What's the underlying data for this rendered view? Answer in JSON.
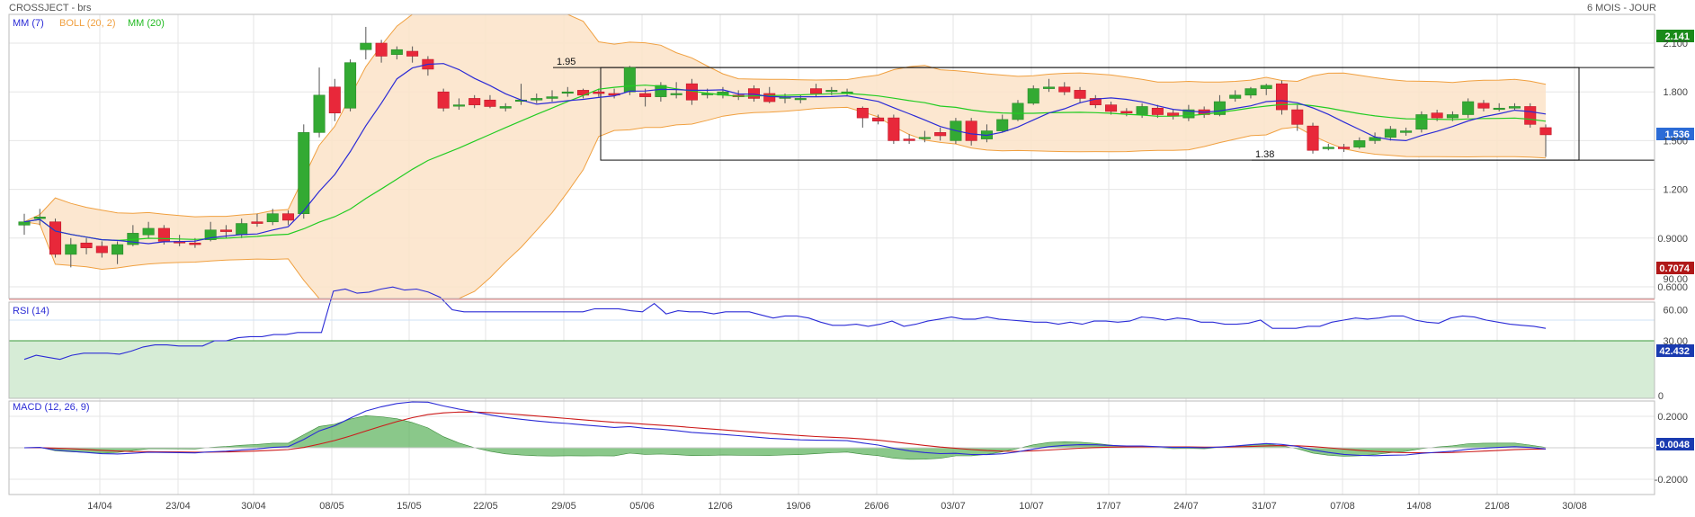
{
  "header": {
    "title": "CROSSJECT - brs",
    "period": "6 MOIS - JOUR"
  },
  "chart_data": [
    {
      "type": "candlestick",
      "legend": {
        "mm7": "MM (7)",
        "boll": "BOLL (20, 2)",
        "mm20": "MM (20)"
      },
      "ylim": [
        0.5,
        2.2
      ],
      "y_ticks": [
        "2.100",
        "1.800",
        "1.500",
        "1.200",
        "0.9000",
        "0.6000"
      ],
      "x_ticks": [
        "14/04",
        "23/04",
        "30/04",
        "08/05",
        "15/05",
        "22/05",
        "29/05",
        "05/06",
        "12/06",
        "19/06",
        "26/06",
        "03/07",
        "10/07",
        "17/07",
        "24/07",
        "31/07",
        "07/08",
        "14/08",
        "21/08",
        "30/08"
      ],
      "last_high_label": "2.141",
      "last_price_label": "1.536",
      "last_low_label": "0.7074",
      "annotations": {
        "resistance": {
          "label": "1.95",
          "value": 1.95
        },
        "support": {
          "label": "1.38",
          "value": 1.38
        }
      },
      "candles": [
        [
          0.98,
          1.0,
          1.05,
          0.92
        ],
        [
          1.02,
          1.03,
          1.08,
          0.98
        ],
        [
          1.0,
          0.8,
          1.02,
          0.78
        ],
        [
          0.8,
          0.86,
          0.9,
          0.72
        ],
        [
          0.87,
          0.84,
          0.9,
          0.8
        ],
        [
          0.85,
          0.81,
          0.88,
          0.78
        ],
        [
          0.8,
          0.86,
          0.88,
          0.74
        ],
        [
          0.86,
          0.93,
          0.98,
          0.85
        ],
        [
          0.92,
          0.96,
          1.0,
          0.9
        ],
        [
          0.96,
          0.88,
          0.98,
          0.86
        ],
        [
          0.88,
          0.87,
          0.92,
          0.85
        ],
        [
          0.87,
          0.86,
          0.9,
          0.84
        ],
        [
          0.89,
          0.95,
          1.0,
          0.88
        ],
        [
          0.95,
          0.94,
          0.98,
          0.9
        ],
        [
          0.92,
          0.99,
          1.02,
          0.9
        ],
        [
          1.0,
          0.99,
          1.05,
          0.97
        ],
        [
          1.0,
          1.05,
          1.08,
          0.98
        ],
        [
          1.05,
          1.01,
          1.07,
          0.98
        ],
        [
          1.05,
          1.55,
          1.6,
          1.02
        ],
        [
          1.55,
          1.78,
          1.95,
          1.52
        ],
        [
          1.83,
          1.67,
          1.88,
          1.62
        ],
        [
          1.7,
          1.98,
          2.0,
          1.68
        ],
        [
          2.06,
          2.1,
          2.2,
          2.0
        ],
        [
          2.1,
          2.02,
          2.12,
          1.98
        ],
        [
          2.03,
          2.06,
          2.08,
          2.0
        ],
        [
          2.05,
          2.02,
          2.08,
          1.98
        ],
        [
          2.0,
          1.94,
          2.02,
          1.9
        ],
        [
          1.8,
          1.7,
          1.82,
          1.68
        ],
        [
          1.72,
          1.72,
          1.76,
          1.69
        ],
        [
          1.76,
          1.72,
          1.78,
          1.7
        ],
        [
          1.75,
          1.71,
          1.78,
          1.7
        ],
        [
          1.7,
          1.71,
          1.73,
          1.68
        ],
        [
          1.75,
          1.75,
          1.85,
          1.72
        ],
        [
          1.75,
          1.76,
          1.79,
          1.73
        ],
        [
          1.76,
          1.77,
          1.81,
          1.74
        ],
        [
          1.8,
          1.8,
          1.83,
          1.77
        ],
        [
          1.81,
          1.78,
          1.82,
          1.76
        ],
        [
          1.8,
          1.79,
          1.82,
          1.77
        ],
        [
          1.79,
          1.78,
          1.82,
          1.76
        ],
        [
          1.8,
          1.95,
          1.96,
          1.78
        ],
        [
          1.79,
          1.77,
          1.82,
          1.71
        ],
        [
          1.77,
          1.84,
          1.86,
          1.74
        ],
        [
          1.79,
          1.79,
          1.86,
          1.76
        ],
        [
          1.85,
          1.75,
          1.88,
          1.72
        ],
        [
          1.79,
          1.79,
          1.82,
          1.76
        ],
        [
          1.78,
          1.8,
          1.83,
          1.76
        ],
        [
          1.78,
          1.77,
          1.81,
          1.75
        ],
        [
          1.82,
          1.76,
          1.84,
          1.74
        ],
        [
          1.79,
          1.74,
          1.83,
          1.73
        ],
        [
          1.76,
          1.77,
          1.79,
          1.73
        ],
        [
          1.76,
          1.76,
          1.78,
          1.73
        ],
        [
          1.82,
          1.79,
          1.85,
          1.77
        ],
        [
          1.81,
          1.81,
          1.83,
          1.78
        ],
        [
          1.8,
          1.8,
          1.82,
          1.78
        ],
        [
          1.7,
          1.64,
          1.71,
          1.58
        ],
        [
          1.64,
          1.62,
          1.66,
          1.6
        ],
        [
          1.64,
          1.5,
          1.66,
          1.48
        ],
        [
          1.51,
          1.5,
          1.54,
          1.48
        ],
        [
          1.52,
          1.52,
          1.56,
          1.49
        ],
        [
          1.55,
          1.53,
          1.58,
          1.5
        ],
        [
          1.5,
          1.62,
          1.64,
          1.48
        ],
        [
          1.62,
          1.5,
          1.64,
          1.47
        ],
        [
          1.51,
          1.56,
          1.6,
          1.49
        ],
        [
          1.56,
          1.63,
          1.66,
          1.55
        ],
        [
          1.63,
          1.73,
          1.75,
          1.62
        ],
        [
          1.73,
          1.82,
          1.84,
          1.72
        ],
        [
          1.82,
          1.83,
          1.88,
          1.8
        ],
        [
          1.83,
          1.8,
          1.86,
          1.78
        ],
        [
          1.81,
          1.76,
          1.83,
          1.73
        ],
        [
          1.76,
          1.72,
          1.78,
          1.7
        ],
        [
          1.72,
          1.68,
          1.74,
          1.66
        ],
        [
          1.68,
          1.67,
          1.7,
          1.65
        ],
        [
          1.66,
          1.71,
          1.73,
          1.64
        ],
        [
          1.7,
          1.66,
          1.72,
          1.64
        ],
        [
          1.67,
          1.65,
          1.69,
          1.63
        ],
        [
          1.64,
          1.69,
          1.72,
          1.62
        ],
        [
          1.69,
          1.66,
          1.71,
          1.64
        ],
        [
          1.66,
          1.74,
          1.78,
          1.65
        ],
        [
          1.76,
          1.78,
          1.81,
          1.74
        ],
        [
          1.78,
          1.82,
          1.83,
          1.76
        ],
        [
          1.82,
          1.84,
          1.85,
          1.78
        ],
        [
          1.85,
          1.69,
          1.87,
          1.66
        ],
        [
          1.69,
          1.6,
          1.72,
          1.56
        ],
        [
          1.59,
          1.44,
          1.61,
          1.42
        ],
        [
          1.45,
          1.46,
          1.48,
          1.44
        ],
        [
          1.46,
          1.45,
          1.48,
          1.43
        ],
        [
          1.46,
          1.5,
          1.52,
          1.45
        ],
        [
          1.5,
          1.52,
          1.55,
          1.48
        ],
        [
          1.52,
          1.57,
          1.59,
          1.5
        ],
        [
          1.55,
          1.56,
          1.58,
          1.53
        ],
        [
          1.57,
          1.66,
          1.68,
          1.55
        ],
        [
          1.67,
          1.64,
          1.69,
          1.62
        ],
        [
          1.64,
          1.66,
          1.68,
          1.62
        ],
        [
          1.66,
          1.74,
          1.76,
          1.64
        ],
        [
          1.73,
          1.7,
          1.75,
          1.68
        ],
        [
          1.7,
          1.7,
          1.73,
          1.68
        ],
        [
          1.7,
          1.71,
          1.73,
          1.69
        ],
        [
          1.71,
          1.6,
          1.73,
          1.58
        ],
        [
          1.58,
          1.536,
          1.6,
          1.4
        ]
      ]
    },
    {
      "type": "line",
      "title": "RSI (14)",
      "ylim": [
        0,
        100
      ],
      "y_ticks": [
        "90.00",
        "60.00",
        "30.00",
        "0"
      ],
      "last_label": "42.432",
      "zones": {
        "overbought": [
          70,
          100
        ],
        "oversold": [
          0,
          30
        ]
      },
      "values": [
        12,
        16,
        14,
        12,
        16,
        18,
        18,
        18,
        17,
        20,
        24,
        26,
        26,
        25,
        25,
        25,
        30,
        30,
        33,
        34,
        34,
        36,
        36,
        38,
        38,
        38,
        78,
        80,
        76,
        77,
        80,
        82,
        79,
        80,
        77,
        72,
        60,
        58,
        58,
        58,
        58,
        58,
        58,
        58,
        58,
        58,
        58,
        58,
        61,
        61,
        61,
        59,
        58,
        66,
        56,
        59,
        58,
        58,
        56,
        58,
        58,
        58,
        55,
        52,
        54,
        54,
        52,
        48,
        45,
        45,
        46,
        44,
        46,
        49,
        44,
        46,
        49,
        51,
        53,
        51,
        51,
        53,
        51,
        50,
        49,
        48,
        48,
        46,
        48,
        46,
        49,
        49,
        48,
        49,
        53,
        52,
        50,
        52,
        51,
        48,
        48,
        46,
        46,
        47,
        50,
        42,
        42,
        42,
        44,
        44,
        48,
        50,
        52,
        51,
        52,
        54,
        54,
        50,
        48,
        47,
        52,
        54,
        53,
        50,
        48,
        46,
        45,
        44,
        42
      ]
    },
    {
      "type": "area",
      "title": "MACD (12, 26, 9)",
      "ylim": [
        -0.28,
        0.28
      ],
      "y_ticks": [
        "0.2000",
        "-0.2000"
      ],
      "last_label": "-0.0048"
    }
  ]
}
